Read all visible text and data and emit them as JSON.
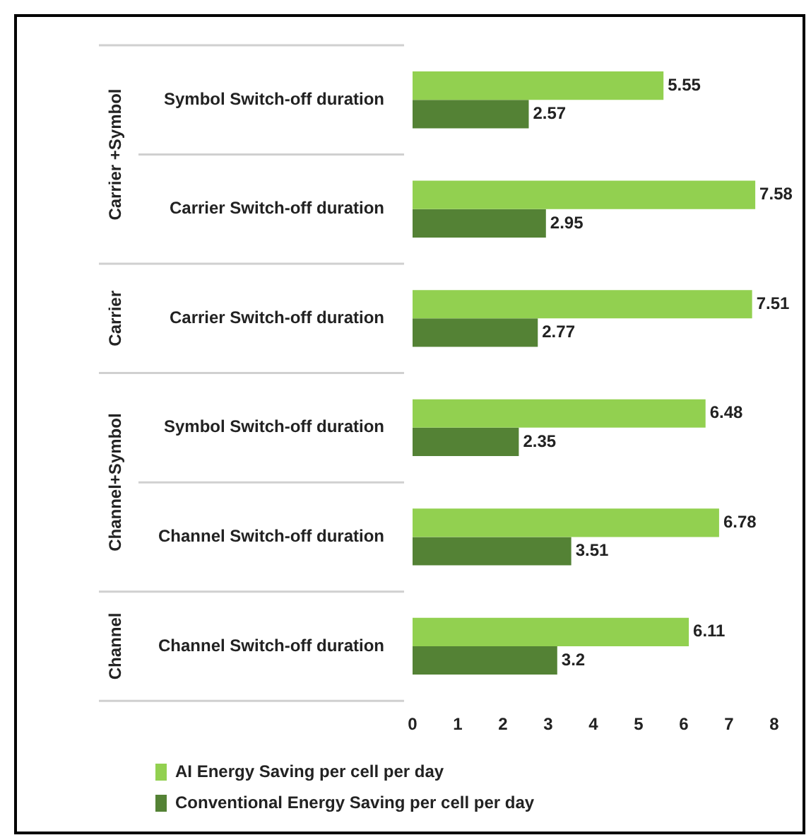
{
  "chart_data": {
    "type": "bar",
    "orientation": "horizontal",
    "categories": [
      "Symbol Switch-off duration",
      "Carrier Switch-off duration",
      "Carrier Switch-off duration",
      "Symbol Switch-off duration",
      "Channel Switch-off duration",
      "Channel Switch-off duration"
    ],
    "series": [
      {
        "name": "AI Energy Saving per cell per day",
        "color": "#92d050",
        "values": [
          5.55,
          7.58,
          7.51,
          6.48,
          6.78,
          6.11
        ]
      },
      {
        "name": "Conventional Energy Saving per cell per day",
        "color": "#548235",
        "values": [
          2.57,
          2.95,
          2.77,
          2.35,
          3.51,
          3.2
        ]
      }
    ],
    "xlim": [
      0,
      8
    ],
    "xticks": [
      0,
      1,
      2,
      3,
      4,
      5,
      6,
      7,
      8
    ],
    "grid": false,
    "legend": "bottom",
    "data_labels": true,
    "annotations": [
      "Carrier +Symbol",
      "Carrier",
      "Channel+Symbol",
      "Channel"
    ]
  }
}
